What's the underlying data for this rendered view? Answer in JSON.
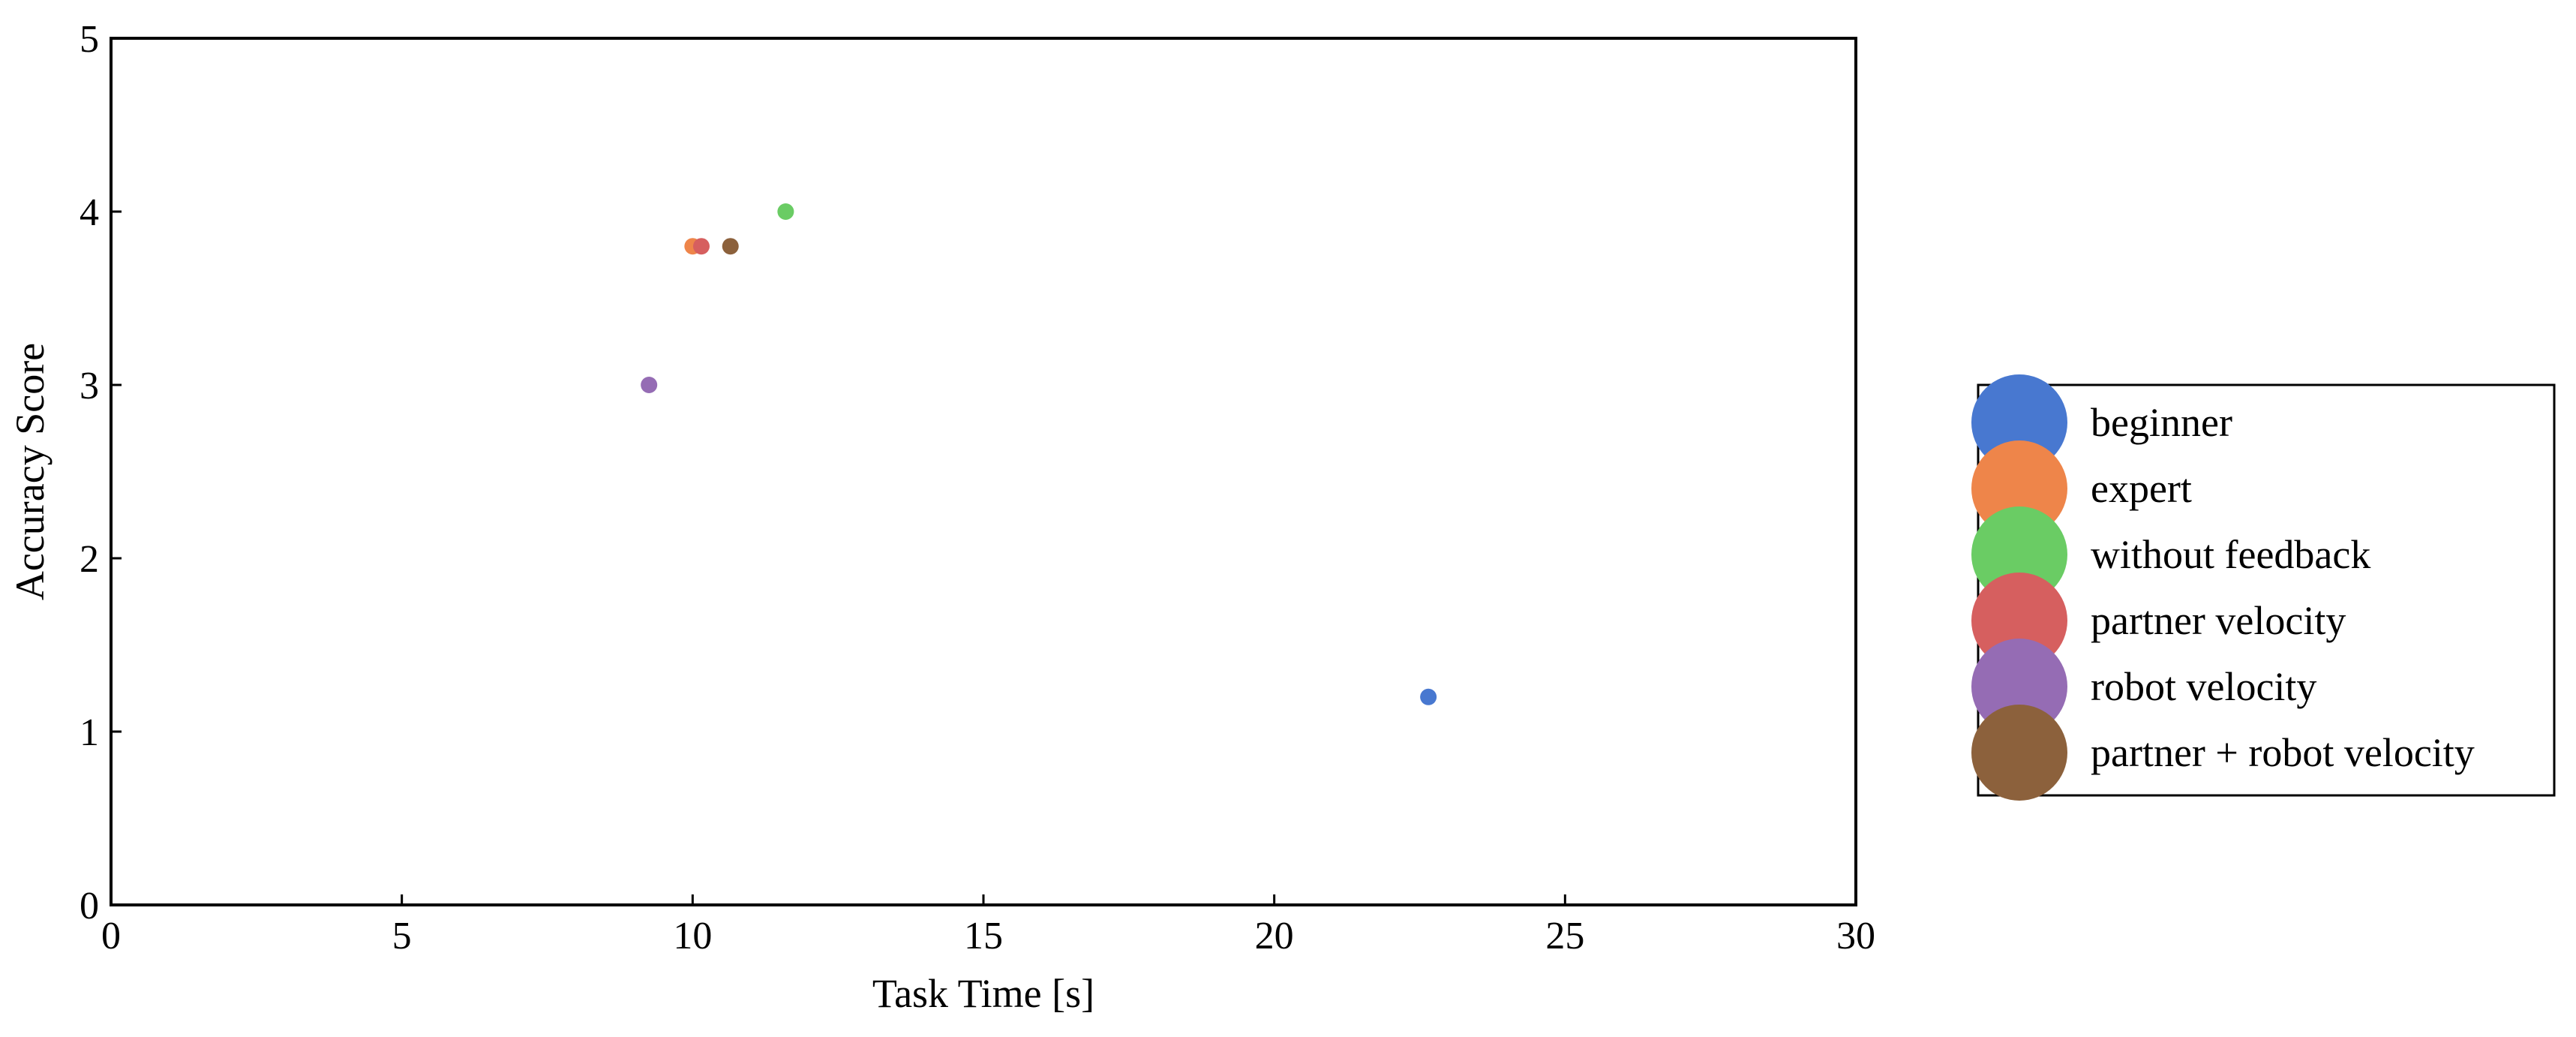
{
  "chart_data": {
    "type": "scatter",
    "title": "",
    "xlabel": "Task Time [s]",
    "ylabel": "Accuracy Score",
    "xlim": [
      0,
      30
    ],
    "ylim": [
      0,
      5
    ],
    "xticks": [
      0,
      5,
      10,
      15,
      20,
      25,
      30
    ],
    "yticks": [
      0,
      1,
      2,
      3,
      4,
      5
    ],
    "grid": false,
    "legend_position": "right",
    "series": [
      {
        "name": "beginner",
        "color": "#4878d0",
        "x": [
          22.65
        ],
        "y": [
          1.2
        ]
      },
      {
        "name": "expert",
        "color": "#ee854a",
        "x": [
          10.0
        ],
        "y": [
          3.8
        ]
      },
      {
        "name": "without feedback",
        "color": "#6acc64",
        "x": [
          11.6
        ],
        "y": [
          4.0
        ]
      },
      {
        "name": "partner velocity",
        "color": "#d65f5f",
        "x": [
          10.15
        ],
        "y": [
          3.8
        ]
      },
      {
        "name": "robot velocity",
        "color": "#956cb4",
        "x": [
          9.25
        ],
        "y": [
          3.0
        ]
      },
      {
        "name": "partner + robot velocity",
        "color": "#8c613c",
        "x": [
          10.65
        ],
        "y": [
          3.8
        ]
      }
    ]
  }
}
